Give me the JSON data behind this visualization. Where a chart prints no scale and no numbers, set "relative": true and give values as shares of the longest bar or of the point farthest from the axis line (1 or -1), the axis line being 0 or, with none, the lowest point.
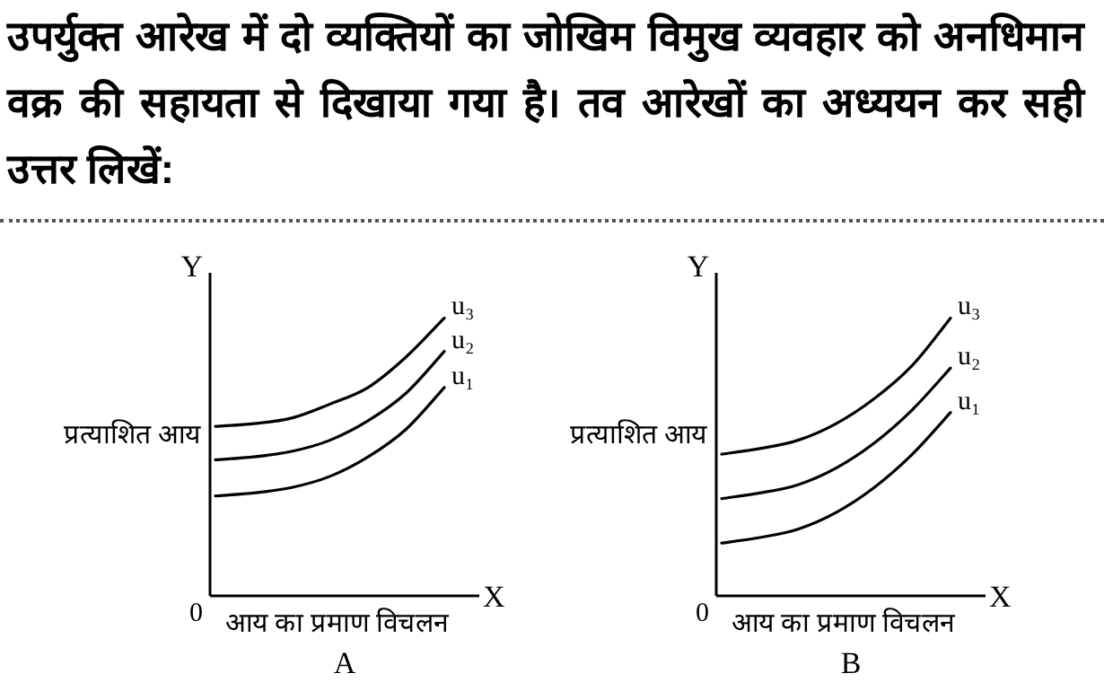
{
  "chart_data": [
    {
      "type": "line",
      "title": "उपर्युक्त आरेख में दो व्यक्तियों का जोखिम विमुख व्यवहार को अनधिमान वक्र की सहायता से दिखाया गया है। तव आरेखों का अध्ययन कर सही उत्तर लिखें:",
      "relative": true,
      "xlabel": "आय का प्रमाण विचलन",
      "ylabel": "प्रत्याशित आय",
      "annotations": [
        "Y",
        "X",
        "0",
        "A"
      ],
      "categories": [
        null,
        null,
        null,
        null,
        null,
        null,
        null
      ],
      "series": [
        {
          "name": "u₃",
          "color": "#000000",
          "values": [
            0.61,
            0.62,
            0.64,
            0.69,
            0.75,
            0.86,
            1.0
          ]
        },
        {
          "name": "u₂",
          "color": "#000000",
          "values": [
            0.49,
            0.5,
            0.52,
            0.56,
            0.63,
            0.73,
            0.88
          ]
        },
        {
          "name": "u₁",
          "color": "#000000",
          "values": [
            0.36,
            0.37,
            0.39,
            0.43,
            0.5,
            0.6,
            0.75
          ]
        }
      ]
    },
    {
      "type": "line",
      "relative": true,
      "xlabel": "आय का प्रमाण विचलन",
      "ylabel": "प्रत्याशित आय",
      "annotations": [
        "Y",
        "X",
        "0",
        "B"
      ],
      "categories": [
        null,
        null,
        null,
        null,
        null,
        null,
        null
      ],
      "series": [
        {
          "name": "u₃",
          "color": "#000000",
          "values": [
            0.51,
            0.53,
            0.56,
            0.62,
            0.71,
            0.83,
            1.0
          ]
        },
        {
          "name": "u₂",
          "color": "#000000",
          "values": [
            0.35,
            0.37,
            0.4,
            0.46,
            0.55,
            0.67,
            0.82
          ]
        },
        {
          "name": "u₁",
          "color": "#000000",
          "values": [
            0.19,
            0.21,
            0.24,
            0.3,
            0.39,
            0.51,
            0.66
          ]
        }
      ]
    }
  ]
}
